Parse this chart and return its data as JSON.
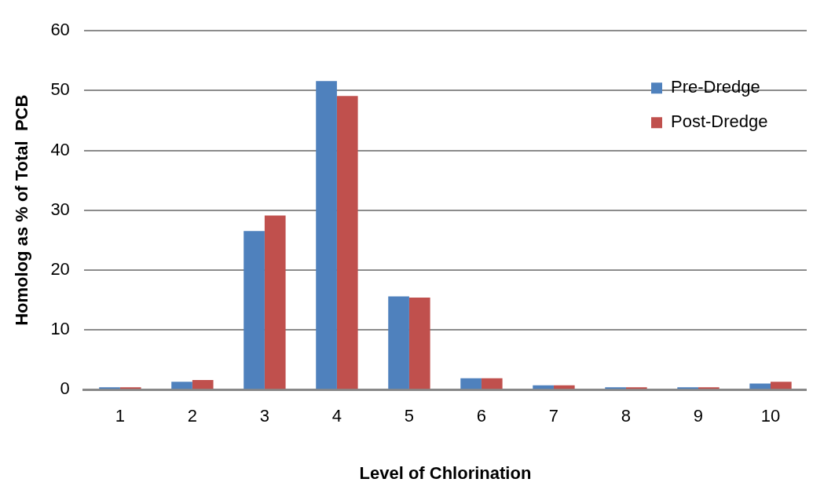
{
  "chart_data": {
    "type": "bar",
    "xlabel": "Level of Chlorination",
    "ylabel": "Homolog as % of Total  PCB",
    "categories": [
      "1",
      "2",
      "3",
      "4",
      "5",
      "6",
      "7",
      "8",
      "9",
      "10"
    ],
    "series": [
      {
        "name": "Pre-Dredge",
        "color": "#4f81bd",
        "values": [
          0.4,
          1.3,
          26.5,
          51.6,
          15.6,
          1.9,
          0.7,
          0.4,
          0.4,
          1.0
        ]
      },
      {
        "name": "Post-Dredge",
        "color": "#c0504d",
        "values": [
          0.4,
          1.6,
          29.1,
          49.1,
          15.4,
          1.9,
          0.7,
          0.4,
          0.4,
          1.3
        ]
      }
    ],
    "ylim": [
      0,
      60
    ],
    "yticks": [
      0,
      10,
      20,
      30,
      40,
      50,
      60
    ],
    "grid": "y",
    "legend": "top right"
  }
}
